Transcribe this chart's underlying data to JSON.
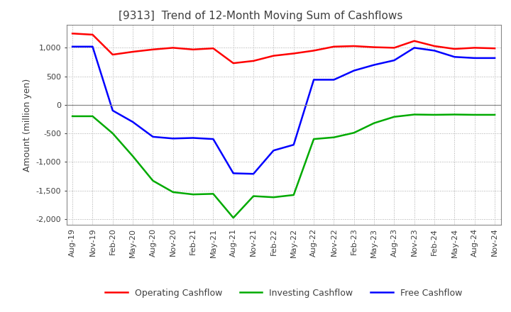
{
  "title": "[9313]  Trend of 12-Month Moving Sum of Cashflows",
  "ylabel": "Amount (million yen)",
  "ylim": [
    -2100,
    1400
  ],
  "yticks": [
    -2000,
    -1500,
    -1000,
    -500,
    0,
    500,
    1000
  ],
  "background_color": "#ffffff",
  "grid_color": "#aaaaaa",
  "x_labels": [
    "Aug-19",
    "Nov-19",
    "Feb-20",
    "May-20",
    "Aug-20",
    "Nov-20",
    "Feb-21",
    "May-21",
    "Aug-21",
    "Nov-21",
    "Feb-22",
    "May-22",
    "Aug-22",
    "Nov-22",
    "Feb-23",
    "May-23",
    "Aug-23",
    "Nov-23",
    "Feb-24",
    "May-24",
    "Aug-24",
    "Nov-24"
  ],
  "operating": [
    1250,
    1230,
    880,
    930,
    970,
    1000,
    970,
    990,
    730,
    770,
    860,
    900,
    950,
    1020,
    1030,
    1010,
    1000,
    1120,
    1030,
    980,
    1000,
    990
  ],
  "investing": [
    -200,
    -200,
    -500,
    -900,
    -1330,
    -1530,
    -1570,
    -1560,
    -1980,
    -1600,
    -1620,
    -1580,
    -600,
    -570,
    -490,
    -320,
    -210,
    -170,
    -175,
    -170,
    -175,
    -175
  ],
  "free": [
    1020,
    1020,
    -100,
    -300,
    -560,
    -590,
    -580,
    -600,
    -1200,
    -1210,
    -800,
    -700,
    440,
    440,
    600,
    700,
    780,
    1000,
    950,
    840,
    820,
    820
  ],
  "operating_color": "#ff0000",
  "investing_color": "#00aa00",
  "free_color": "#0000ff",
  "line_width": 1.8,
  "title_color": "#404040",
  "title_fontsize": 11,
  "axis_label_fontsize": 9,
  "tick_label_fontsize": 8,
  "legend_fontsize": 9
}
